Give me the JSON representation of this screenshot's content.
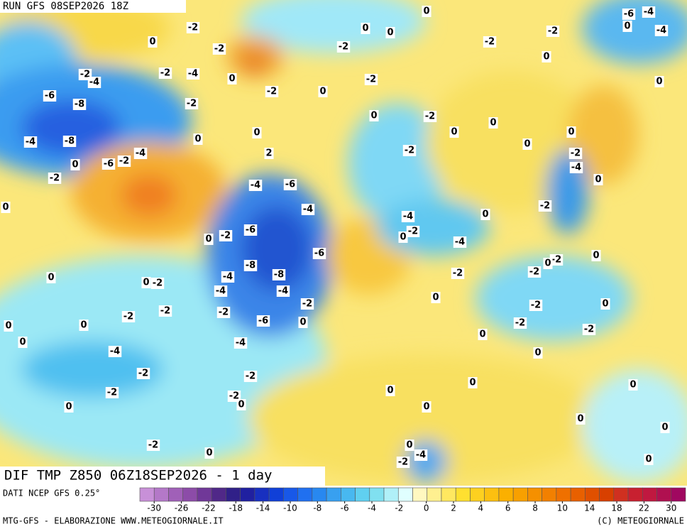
{
  "header": {
    "run": "RUN GFS 08SEP2026 18Z"
  },
  "map": {
    "title": "DIF TMP Z850 06Z18SEP2026 - 1 day",
    "labels": [
      0,
      -6,
      -4,
      0,
      -4,
      -2,
      -2,
      0,
      0,
      0,
      -2,
      -2,
      0,
      -2,
      0,
      -2,
      -2,
      -2,
      -4,
      0,
      -2,
      -4,
      -6,
      -8,
      -2,
      -4,
      -8,
      -6,
      -2,
      -4,
      0,
      -2,
      0,
      0,
      2,
      0,
      -2,
      0,
      0,
      -2,
      0,
      0,
      -2,
      -4,
      -4,
      -6,
      -4,
      -4,
      -2,
      0,
      -6,
      -2,
      0,
      -6,
      -8,
      0,
      -4,
      -2,
      -4,
      -8,
      0,
      -2,
      0,
      -4,
      -4,
      -2,
      -2,
      -2,
      -2,
      -6,
      0,
      0,
      0,
      0,
      -4,
      -4,
      -2,
      -2,
      -2,
      -2,
      0,
      0,
      0,
      0,
      0,
      -2,
      0,
      0,
      -4,
      -2,
      0,
      -2,
      0,
      -2,
      -2,
      0,
      0,
      -2,
      0,
      -2,
      -2,
      0,
      0,
      0,
      0,
      0,
      0,
      0,
      0
    ]
  },
  "colorbar": {
    "source": "DATI NCEP GFS 0.25°",
    "ticks": [
      -30,
      -26,
      -22,
      -18,
      -14,
      -10,
      -8,
      -6,
      -4,
      -2,
      0,
      2,
      4,
      6,
      8,
      10,
      14,
      18,
      22,
      30
    ],
    "colors": [
      "#c890d8",
      "#b478c8",
      "#a060b8",
      "#8c4ca8",
      "#703898",
      "#502888",
      "#302088",
      "#2020a0",
      "#1830c0",
      "#1040d8",
      "#1858e8",
      "#2070f0",
      "#2888f0",
      "#38a0f0",
      "#48b8f0",
      "#60d0f0",
      "#80e0f0",
      "#b0f0f8",
      "#e0ffff",
      "#fff8c0",
      "#fff090",
      "#ffe860",
      "#ffe030",
      "#fdd020",
      "#fcc010",
      "#fbb000",
      "#f8a000",
      "#f59000",
      "#f28000",
      "#ef7000",
      "#e86000",
      "#e05000",
      "#d84000",
      "#d03020",
      "#c82030",
      "#c01840",
      "#b01050",
      "#a00860"
    ]
  },
  "footer": {
    "left": "MTG-GFS - ELABORAZIONE WWW.METEOGIORNALE.IT",
    "right": "(C) METEOGIORNALE"
  }
}
